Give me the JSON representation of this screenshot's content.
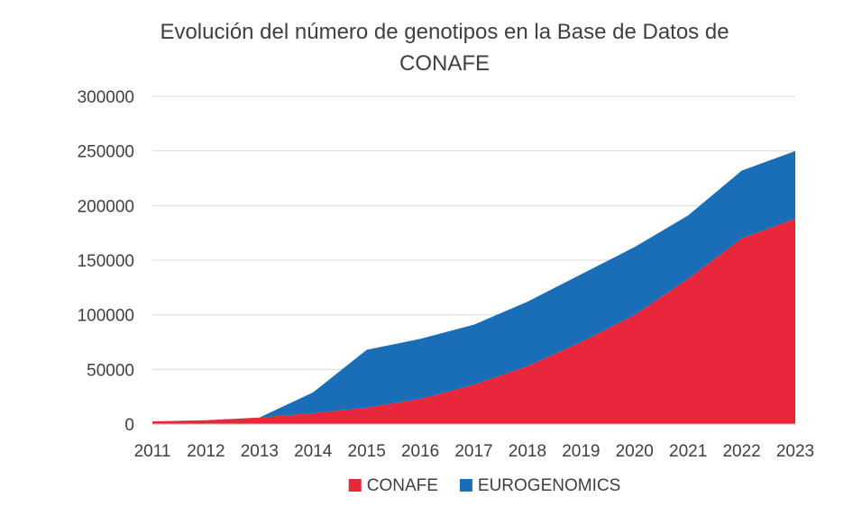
{
  "chart_data": {
    "type": "area",
    "stacked": true,
    "title": "Evolución del número de genotipos en la Base de Datos de CONAFE",
    "title_lines": [
      "Evolución del número de genotipos en la Base de Datos de",
      "CONAFE"
    ],
    "x": [
      2011,
      2012,
      2013,
      2014,
      2015,
      2016,
      2017,
      2018,
      2019,
      2020,
      2021,
      2022,
      2023
    ],
    "x_tick_labels": [
      "2011",
      "2012",
      "2013",
      "2014",
      "2015",
      "2016",
      "2017",
      "2018",
      "2019",
      "2020",
      "2021",
      "2022",
      "2023"
    ],
    "ylim": [
      0,
      300000
    ],
    "y_ticks": [
      0,
      50000,
      100000,
      150000,
      200000,
      250000,
      300000
    ],
    "y_tick_labels": [
      "0",
      "50000",
      "100000",
      "150000",
      "200000",
      "250000",
      "300000"
    ],
    "grid": true,
    "legend": "bottom",
    "series": [
      {
        "name": "CONAFE",
        "color": "#E8283A",
        "values": [
          2500,
          3500,
          6000,
          10000,
          15000,
          23000,
          36000,
          53000,
          75000,
          100000,
          133000,
          170000,
          188000
        ]
      },
      {
        "name": "EUROGENOMICS",
        "color": "#1A6EB8",
        "values": [
          0,
          0,
          0,
          19000,
          53000,
          55000,
          55000,
          59000,
          62000,
          62000,
          58000,
          62000,
          62000
        ]
      }
    ]
  }
}
